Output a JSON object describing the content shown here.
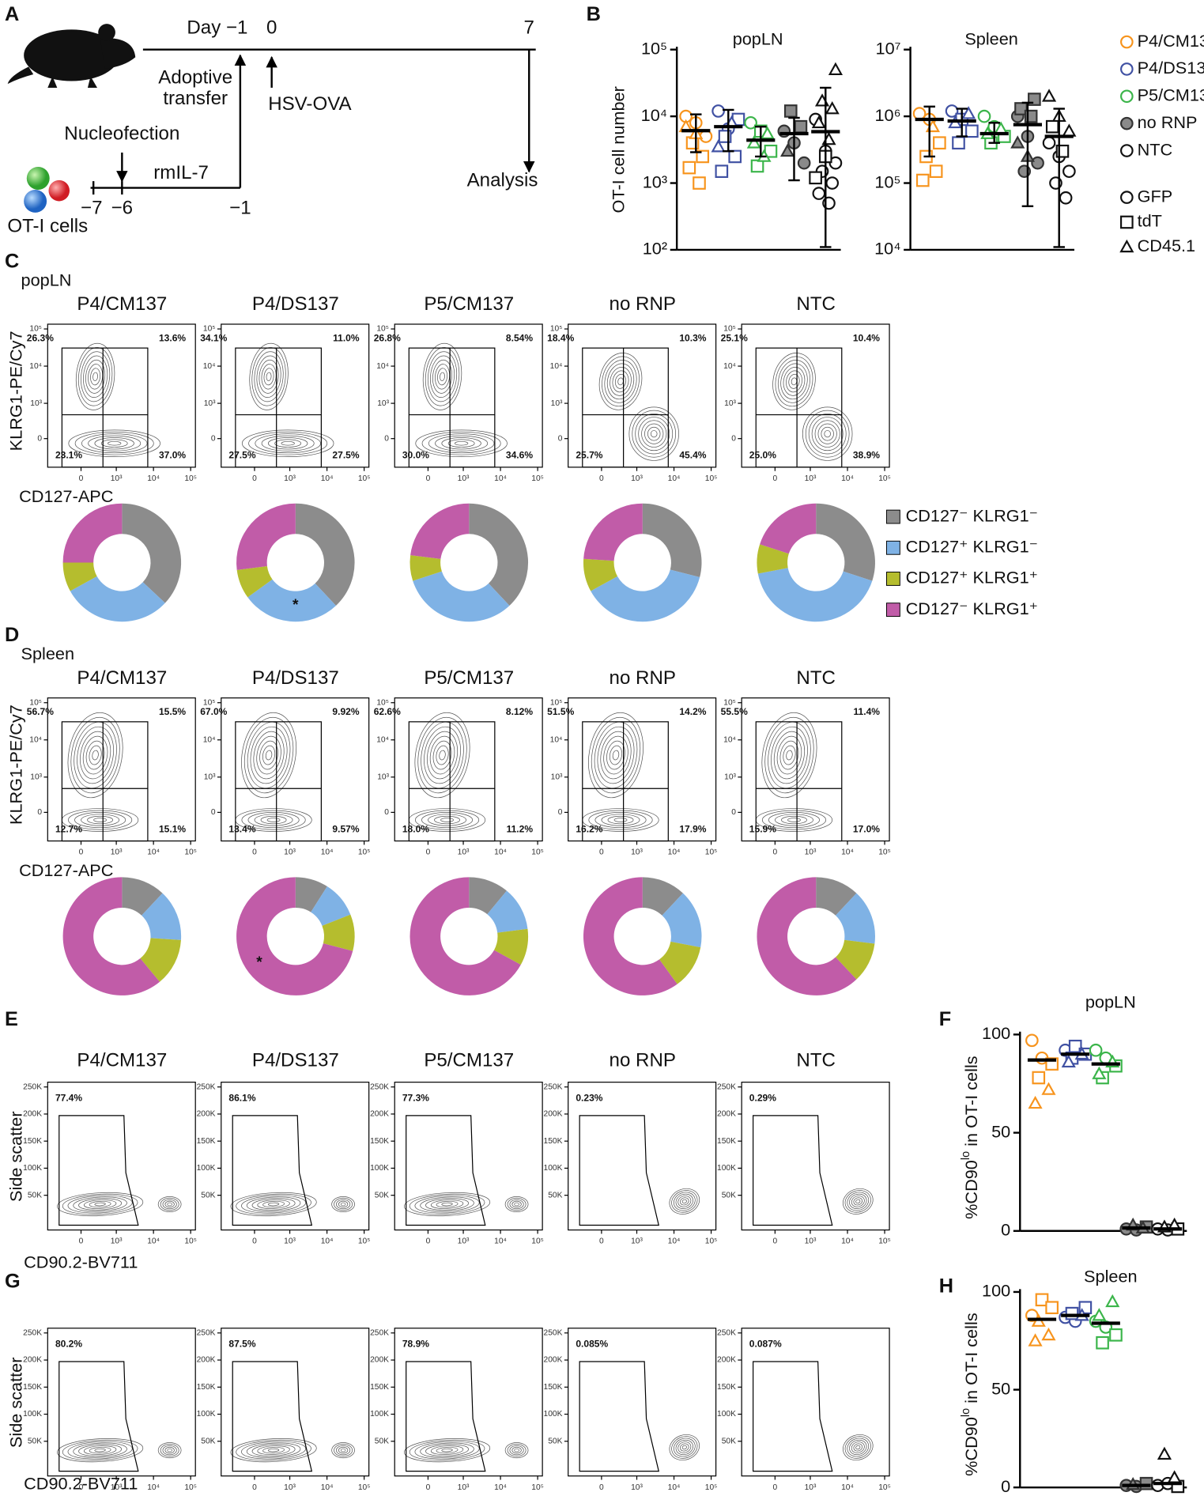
{
  "groups": [
    {
      "name": "P4/CM137",
      "color": "#f7941d",
      "fill": "#ffffff"
    },
    {
      "name": "P4/DS137",
      "color": "#4051a3",
      "fill": "#ffffff"
    },
    {
      "name": "P5/CM137",
      "color": "#3bb54a",
      "fill": "#ffffff"
    },
    {
      "name": "no RNP",
      "color": "#333333",
      "fill": "#8a8a8a"
    },
    {
      "name": "NTC",
      "color": "#111111",
      "fill": "#ffffff"
    }
  ],
  "A": {
    "letter": "A",
    "day_label": "Day −1",
    "day0": "0",
    "day7": "7",
    "transfer": [
      "Adoptive",
      "transfer"
    ],
    "infection": "HSV-OVA",
    "nucleofection": "Nucleofection",
    "culture": "rmIL-7",
    "analysis": "Analysis",
    "cells": "OT-I cells",
    "days": [
      "−7",
      "−6",
      "−1"
    ]
  },
  "B": {
    "letter": "B",
    "ylabel": "OT-I cell number",
    "legend_markers": [
      "GFP",
      "tdT",
      "CD45.1"
    ],
    "plots": [
      {
        "title": "popLN",
        "ylim": [
          100,
          100000
        ],
        "yticks": [
          {
            "value": 100,
            "label": "10²"
          },
          {
            "value": 1000,
            "label": "10³"
          },
          {
            "value": 10000,
            "label": "10⁴"
          },
          {
            "value": 100000,
            "label": "10⁵"
          }
        ],
        "data": [
          {
            "mean": 6100,
            "sd": [
              2900,
              10700
            ],
            "points": {
              "circle": [
                10000,
                8000,
                5000
              ],
              "square": [
                4000,
                2500,
                1700,
                1000
              ],
              "triangle": [
                7000,
                5500
              ]
            }
          },
          {
            "mean": 7000,
            "sd": [
              3000,
              12500
            ],
            "points": {
              "circle": [
                12000,
                6500
              ],
              "square": [
                9000,
                5000,
                2500,
                1500
              ],
              "triangle": [
                8000,
                3500
              ]
            }
          },
          {
            "mean": 4400,
            "sd": [
              2500,
              7000
            ],
            "points": {
              "circle": [
                8000
              ],
              "square": [
                6000,
                3000,
                1800
              ],
              "triangle": [
                5500,
                4000,
                2500
              ]
            }
          },
          {
            "mean": 5500,
            "sd": [
              1100,
              9500
            ],
            "points": {
              "circle": [
                6000,
                4000,
                2000
              ],
              "square": [
                12000,
                7000
              ],
              "triangle": [
                3000
              ]
            }
          },
          {
            "mean": 5900,
            "sd": [
              110,
              26800
            ],
            "points": {
              "circle": [
                9000,
                3000,
                2000,
                1500,
                1000,
                700,
                500
              ],
              "square": [
                1200,
                2500
              ],
              "triangle": [
                50000,
                17000,
                13000,
                8000,
                4500
              ]
            }
          }
        ]
      },
      {
        "title": "Spleen",
        "ylim": [
          10000,
          10000000
        ],
        "yticks": [
          {
            "value": 10000,
            "label": "10⁴"
          },
          {
            "value": 100000,
            "label": "10⁵"
          },
          {
            "value": 1000000,
            "label": "10⁶"
          },
          {
            "value": 10000000,
            "label": "10⁷"
          }
        ],
        "data": [
          {
            "mean": 900000,
            "sd": [
              250000,
              1400000
            ],
            "points": {
              "circle": [
                1100000,
                900000
              ],
              "square": [
                400000,
                250000,
                150000,
                110000
              ],
              "triangle": [
                700000
              ]
            }
          },
          {
            "mean": 850000,
            "sd": [
              500000,
              1300000
            ],
            "points": {
              "circle": [
                1200000
              ],
              "square": [
                900000,
                600000,
                400000
              ],
              "triangle": [
                1100000,
                800000
              ]
            }
          },
          {
            "mean": 550000,
            "sd": [
              400000,
              800000
            ],
            "points": {
              "circle": [
                1000000,
                700000
              ],
              "square": [
                500000,
                400000
              ],
              "triangle": [
                650000,
                550000
              ]
            }
          },
          {
            "mean": 750000,
            "sd": [
              45000,
              1600000
            ],
            "points": {
              "circle": [
                1000000,
                500000,
                200000,
                150000
              ],
              "square": [
                1800000,
                1300000,
                1000000
              ],
              "triangle": [
                400000,
                250000
              ]
            }
          },
          {
            "mean": 500000,
            "sd": [
              11000,
              1300000
            ],
            "points": {
              "circle": [
                400000,
                250000,
                150000,
                100000,
                60000
              ],
              "square": [
                700000,
                300000
              ],
              "triangle": [
                2000000,
                1000000,
                600000
              ]
            }
          }
        ]
      }
    ]
  },
  "flow_axes": {
    "log_ticks": [
      0,
      {
        "value": 1000,
        "label": "10³"
      },
      {
        "value": 10000,
        "label": "10⁴"
      },
      {
        "value": 100000,
        "label": "10⁵"
      }
    ],
    "ssc_ticks": [
      {
        "value": 50000,
        "label": "50K"
      },
      {
        "value": 100000,
        "label": "100K"
      },
      {
        "value": 150000,
        "label": "150K"
      },
      {
        "value": 200000,
        "label": "200K"
      },
      {
        "value": 250000,
        "label": "250K"
      }
    ]
  },
  "donut_legend": [
    {
      "label": "CD127⁻ KLRG1⁻",
      "color": "#8c8c8c"
    },
    {
      "label": "CD127⁺ KLRG1⁻",
      "color": "#7fb2e5"
    },
    {
      "label": "CD127⁺ KLRG1⁺",
      "color": "#b5bd2e"
    },
    {
      "label": "CD127⁻ KLRG1⁺",
      "color": "#c15ca8"
    }
  ],
  "C": {
    "letter": "C",
    "tissue": "popLN",
    "ylabel": "KLRG1-PE/Cy7",
    "xlabel": "CD127-APC",
    "asterisk": "*",
    "quadrants": [
      [
        "26.3%",
        "13.6%",
        "23.1%",
        "37.0%"
      ],
      [
        "34.1%",
        "11.0%",
        "27.5%",
        "27.5%"
      ],
      [
        "26.8%",
        "8.54%",
        "30.0%",
        "34.6%"
      ],
      [
        "18.4%",
        "10.3%",
        "25.7%",
        "45.4%"
      ],
      [
        "25.1%",
        "10.4%",
        "25.0%",
        "38.9%"
      ]
    ],
    "donuts": [
      [
        37,
        30,
        8,
        25
      ],
      [
        38,
        27,
        8,
        27
      ],
      [
        38,
        32,
        7,
        23
      ],
      [
        29,
        38,
        9,
        24
      ],
      [
        30,
        42,
        8,
        20
      ]
    ]
  },
  "D": {
    "letter": "D",
    "tissue": "Spleen",
    "ylabel": "KLRG1-PE/Cy7",
    "xlabel": "CD127-APC",
    "asterisk": "*",
    "quadrants": [
      [
        "56.7%",
        "15.5%",
        "12.7%",
        "15.1%"
      ],
      [
        "67.0%",
        "9.92%",
        "13.4%",
        "9.57%"
      ],
      [
        "62.6%",
        "8.12%",
        "18.0%",
        "11.2%"
      ],
      [
        "51.5%",
        "14.2%",
        "16.2%",
        "17.9%"
      ],
      [
        "55.5%",
        "11.4%",
        "15.9%",
        "17.0%"
      ]
    ],
    "donuts": [
      [
        12,
        14,
        13,
        61
      ],
      [
        9,
        10,
        10,
        71
      ],
      [
        11,
        12,
        10,
        67
      ],
      [
        12,
        16,
        12,
        60
      ],
      [
        12,
        15,
        11,
        62
      ]
    ]
  },
  "E": {
    "letter": "E",
    "ylabel": "Side scatter",
    "xlabel": "CD90.2-BV711",
    "gates": [
      "77.4%",
      "86.1%",
      "77.3%",
      "0.23%",
      "0.29%"
    ]
  },
  "G": {
    "letter": "G",
    "ylabel": "Side scatter",
    "xlabel": "CD90.2-BV711",
    "gates": [
      "80.2%",
      "87.5%",
      "78.9%",
      "0.085%",
      "0.087%"
    ]
  },
  "F": {
    "letter": "F",
    "title": "popLN",
    "ylabel": [
      "%CD90",
      "lo",
      " in OT-I cells"
    ],
    "ylim": [
      0,
      100
    ],
    "yticks": [
      0,
      50,
      100
    ],
    "data": [
      {
        "mean": 87,
        "points": {
          "circle": [
            97,
            88
          ],
          "square": [
            85,
            78
          ],
          "triangle": [
            72,
            65
          ]
        }
      },
      {
        "mean": 90,
        "points": {
          "circle": [
            92
          ],
          "square": [
            94,
            90,
            88
          ],
          "triangle": [
            90,
            86
          ]
        }
      },
      {
        "mean": 85,
        "points": {
          "circle": [
            92,
            88
          ],
          "square": [
            84,
            78
          ],
          "triangle": [
            86,
            80
          ]
        }
      },
      {
        "mean": 1.5,
        "points": {
          "circle": [
            1,
            0.5
          ],
          "square": [
            2
          ],
          "triangle": [
            3,
            1.5
          ]
        }
      },
      {
        "mean": 1,
        "points": {
          "circle": [
            1,
            0.5
          ],
          "square": [
            1
          ],
          "triangle": [
            2,
            3
          ]
        }
      }
    ]
  },
  "H": {
    "letter": "H",
    "title": "Spleen",
    "ylabel": [
      "%CD90",
      "lo",
      " in OT-I cells"
    ],
    "ylim": [
      0,
      100
    ],
    "yticks": [
      0,
      50,
      100
    ],
    "data": [
      {
        "mean": 86,
        "points": {
          "circle": [
            88
          ],
          "square": [
            96,
            92
          ],
          "triangle": [
            85,
            78,
            75
          ]
        }
      },
      {
        "mean": 88,
        "points": {
          "circle": [
            87,
            85
          ],
          "square": [
            92,
            89
          ],
          "triangle": [
            88
          ]
        }
      },
      {
        "mean": 84,
        "points": {
          "circle": [
            85,
            82
          ],
          "square": [
            78,
            74
          ],
          "triangle": [
            95,
            88
          ]
        }
      },
      {
        "mean": 1,
        "points": {
          "circle": [
            1,
            0.5
          ],
          "square": [
            2
          ],
          "triangle": [
            1.5
          ]
        }
      },
      {
        "mean": 2,
        "points": {
          "circle": [
            1,
            2
          ],
          "square": [
            0.5
          ],
          "triangle": [
            17,
            5
          ]
        }
      }
    ]
  }
}
